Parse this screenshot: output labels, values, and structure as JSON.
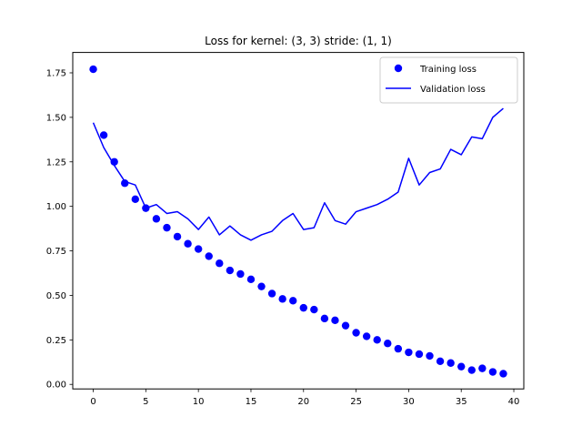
{
  "chart_data": {
    "type": "line",
    "title": "Loss for kernel: (3, 3) stride: (1, 1)",
    "xlabel": "",
    "ylabel": "",
    "xlim": [
      -1.95,
      40.95
    ],
    "ylim": [
      -0.0255,
      1.8645
    ],
    "xticks": [
      0,
      5,
      10,
      15,
      20,
      25,
      30,
      35,
      40
    ],
    "yticks": [
      0.0,
      0.25,
      0.5,
      0.75,
      1.0,
      1.25,
      1.5,
      1.75
    ],
    "ytick_labels": [
      "0.00",
      "0.25",
      "0.50",
      "0.75",
      "1.00",
      "1.25",
      "1.50",
      "1.75"
    ],
    "grid": false,
    "legend_position": "top-right",
    "x": [
      0,
      1,
      2,
      3,
      4,
      5,
      6,
      7,
      8,
      9,
      10,
      11,
      12,
      13,
      14,
      15,
      16,
      17,
      18,
      19,
      20,
      21,
      22,
      23,
      24,
      25,
      26,
      27,
      28,
      29,
      30,
      31,
      32,
      33,
      34,
      35,
      36,
      37,
      38,
      39
    ],
    "series": [
      {
        "name": "Training loss",
        "kind": "scatter",
        "color": "#0000ff",
        "values": [
          1.77,
          1.4,
          1.25,
          1.13,
          1.04,
          0.99,
          0.93,
          0.88,
          0.83,
          0.79,
          0.76,
          0.72,
          0.68,
          0.64,
          0.62,
          0.59,
          0.55,
          0.51,
          0.48,
          0.47,
          0.43,
          0.42,
          0.37,
          0.36,
          0.33,
          0.29,
          0.27,
          0.25,
          0.23,
          0.2,
          0.18,
          0.17,
          0.16,
          0.13,
          0.12,
          0.1,
          0.08,
          0.09,
          0.07,
          0.06
        ]
      },
      {
        "name": "Validation loss",
        "kind": "line",
        "color": "#0000ff",
        "values": [
          1.47,
          1.33,
          1.23,
          1.14,
          1.12,
          0.99,
          1.01,
          0.96,
          0.97,
          0.93,
          0.87,
          0.94,
          0.84,
          0.89,
          0.84,
          0.81,
          0.84,
          0.86,
          0.92,
          0.96,
          0.87,
          0.88,
          1.02,
          0.92,
          0.9,
          0.97,
          0.99,
          1.01,
          1.04,
          1.08,
          1.27,
          1.12,
          1.19,
          1.21,
          1.32,
          1.29,
          1.39,
          1.38,
          1.5,
          1.55
        ]
      }
    ]
  }
}
